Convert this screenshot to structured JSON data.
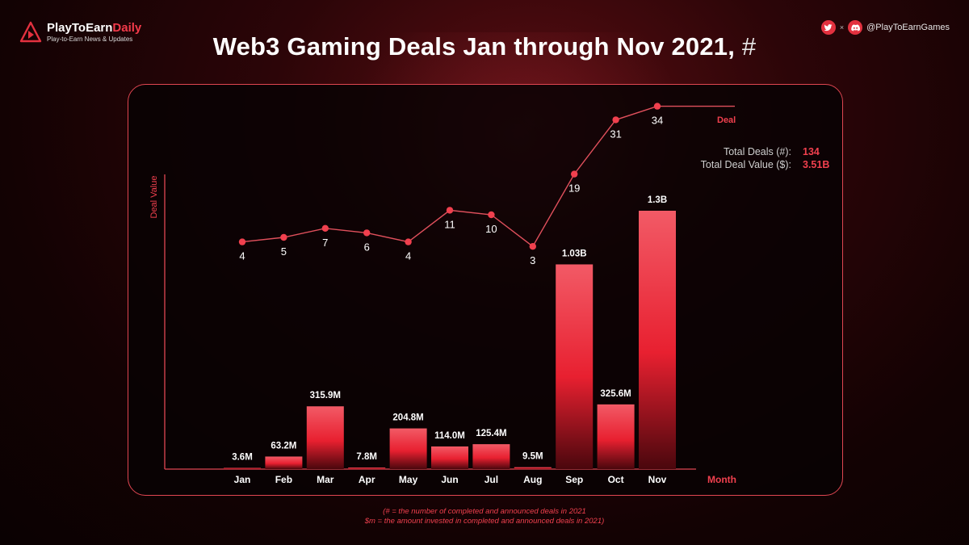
{
  "brand": {
    "name_main": "PlayToEarn",
    "name_accent": "Daily",
    "tagline": "Play-to-Earn News & Updates"
  },
  "social": {
    "separator": "×",
    "handle": "@PlayToEarnGames",
    "icons": [
      "twitter-icon",
      "discord-icon"
    ]
  },
  "title": {
    "main": "Web3 Gaming Deals Jan through Nov 2021,",
    "suffix": "#"
  },
  "stats": {
    "total_deals_label": "Total Deals (#):",
    "total_deals_value": "134",
    "total_value_label": "Total Deal Value ($):",
    "total_value_value": "3.51B"
  },
  "footnote": {
    "line1": "(# = the number of completed and announced deals in 2021",
    "line2": "$m = the amount invested in completed and announced deals in 2021)"
  },
  "colors": {
    "accent": "#f0404e",
    "bar_top": "#f25a66",
    "bar_bottom": "#d91e2c"
  },
  "chart_data": {
    "type": "bar+line",
    "title": "Web3 Gaming Deals Jan through Nov 2021, #",
    "xlabel": "Month",
    "ylabel": "Deal Value",
    "categories": [
      "Jan",
      "Feb",
      "Mar",
      "Apr",
      "May",
      "Jun",
      "Jul",
      "Aug",
      "Sep",
      "Oct",
      "Nov"
    ],
    "series": [
      {
        "name": "Deal Value",
        "kind": "bar",
        "unit": "USD millions",
        "values": [
          3.6,
          63.2,
          315.9,
          7.8,
          204.8,
          114.0,
          125.4,
          9.5,
          1030,
          325.6,
          1300
        ],
        "labels": [
          "3.6M",
          "63.2M",
          "315.9M",
          "7.8M",
          "204.8M",
          "114.0M",
          "125.4M",
          "9.5M",
          "1.03B",
          "325.6M",
          "1.3B"
        ]
      },
      {
        "name": "Deal",
        "kind": "line",
        "unit": "count",
        "values": [
          4,
          5,
          7,
          6,
          4,
          11,
          10,
          3,
          19,
          31,
          34
        ]
      }
    ]
  }
}
